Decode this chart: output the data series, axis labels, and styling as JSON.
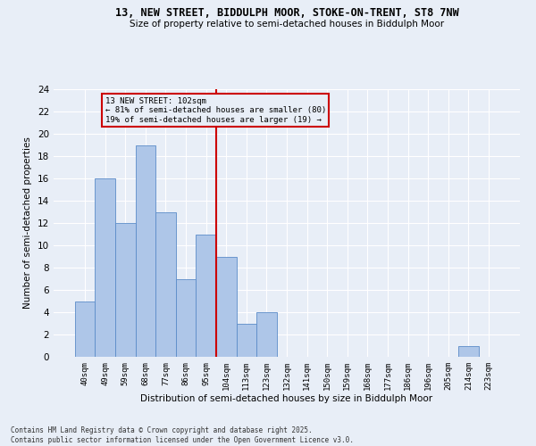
{
  "title1": "13, NEW STREET, BIDDULPH MOOR, STOKE-ON-TRENT, ST8 7NW",
  "title2": "Size of property relative to semi-detached houses in Biddulph Moor",
  "xlabel": "Distribution of semi-detached houses by size in Biddulph Moor",
  "ylabel": "Number of semi-detached properties",
  "footer": "Contains HM Land Registry data © Crown copyright and database right 2025.\nContains public sector information licensed under the Open Government Licence v3.0.",
  "bin_labels": [
    "40sqm",
    "49sqm",
    "59sqm",
    "68sqm",
    "77sqm",
    "86sqm",
    "95sqm",
    "104sqm",
    "113sqm",
    "123sqm",
    "132sqm",
    "141sqm",
    "150sqm",
    "159sqm",
    "168sqm",
    "177sqm",
    "186sqm",
    "196sqm",
    "205sqm",
    "214sqm",
    "223sqm"
  ],
  "bin_values": [
    5,
    16,
    12,
    19,
    13,
    7,
    11,
    9,
    3,
    4,
    0,
    0,
    0,
    0,
    0,
    0,
    0,
    0,
    0,
    1,
    0
  ],
  "property_bin_index": 7,
  "annotation_title": "13 NEW STREET: 102sqm",
  "annotation_line1": "← 81% of semi-detached houses are smaller (80)",
  "annotation_line2": "19% of semi-detached houses are larger (19) →",
  "bar_color": "#aec6e8",
  "bar_edge_color": "#5b8cc8",
  "vline_color": "#cc0000",
  "bg_color": "#e8eef7",
  "ylim": [
    0,
    24
  ],
  "yticks": [
    0,
    2,
    4,
    6,
    8,
    10,
    12,
    14,
    16,
    18,
    20,
    22,
    24
  ]
}
